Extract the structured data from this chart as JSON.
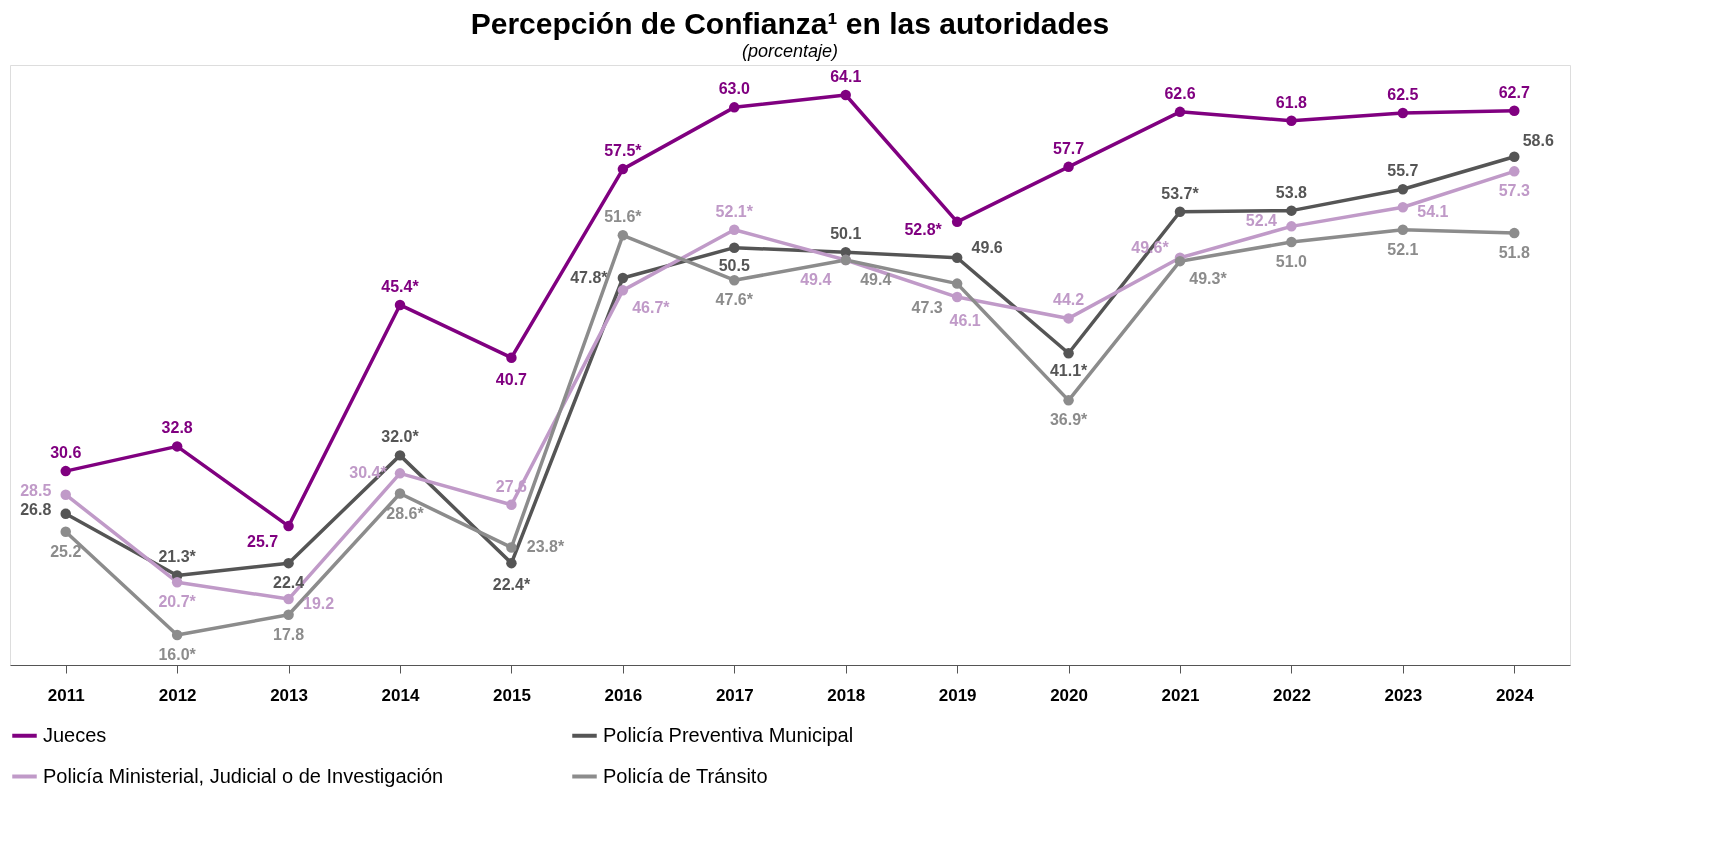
{
  "chart_data": {
    "type": "line",
    "title": "Percepción de Confianza¹ en las autoridades",
    "subtitle": "(porcentaje)",
    "categories": [
      "2011",
      "2012",
      "2013",
      "2014",
      "2015",
      "2016",
      "2017",
      "2018",
      "2019",
      "2020",
      "2021",
      "2022",
      "2023",
      "2024"
    ],
    "series": [
      {
        "name": "Jueces",
        "color": "#800080",
        "values": [
          30.6,
          32.8,
          25.7,
          45.4,
          40.7,
          57.5,
          63.0,
          64.1,
          52.8,
          57.7,
          62.6,
          61.8,
          62.5,
          62.7
        ],
        "value_labels": [
          "30.6",
          "32.8",
          "25.7",
          "45.4*",
          "40.7",
          "57.5*",
          "63.0",
          "64.1",
          "52.8*",
          "57.7",
          "62.6",
          "61.8",
          "62.5",
          "62.7"
        ]
      },
      {
        "name": "Policía Preventiva Municipal",
        "color": "#555555",
        "values": [
          26.8,
          21.3,
          22.4,
          32.0,
          22.4,
          47.8,
          50.5,
          50.1,
          49.6,
          41.1,
          53.7,
          53.8,
          55.7,
          58.6
        ],
        "value_labels": [
          "26.8",
          "21.3*",
          "22.4",
          "32.0*",
          "22.4*",
          "47.8*",
          "50.5",
          "50.1",
          "49.6",
          "41.1*",
          "53.7*",
          "53.8",
          "55.7",
          "58.6"
        ]
      },
      {
        "name": "Policía Ministerial, Judicial o de Investigación",
        "color": "#c09ac8",
        "values": [
          28.5,
          20.7,
          19.2,
          30.4,
          27.6,
          46.7,
          52.1,
          49.4,
          46.1,
          44.2,
          49.6,
          52.4,
          54.1,
          57.3
        ],
        "value_labels": [
          "28.5",
          "20.7*",
          "19.2",
          "30.4*",
          "27.6",
          "46.7*",
          "52.1*",
          "49.4",
          "46.1",
          "44.2",
          "49.6*",
          "52.4",
          "54.1",
          "57.3"
        ]
      },
      {
        "name": "Policía de Tránsito",
        "color": "#8c8c8c",
        "values": [
          25.2,
          16.0,
          17.8,
          28.6,
          23.8,
          51.6,
          47.6,
          49.4,
          47.3,
          36.9,
          49.3,
          51.0,
          52.1,
          51.8
        ],
        "value_labels": [
          "25.2",
          "16.0*",
          "17.8",
          "28.6*",
          "23.8*",
          "51.6*",
          "47.6*",
          "49.4",
          "47.3",
          "36.9*",
          "49.3*",
          "51.0",
          "52.1",
          "51.8"
        ]
      }
    ],
    "marker": "circle",
    "line_style": "solid",
    "grid": false,
    "legend": "bottom",
    "tick_labels": "x"
  }
}
